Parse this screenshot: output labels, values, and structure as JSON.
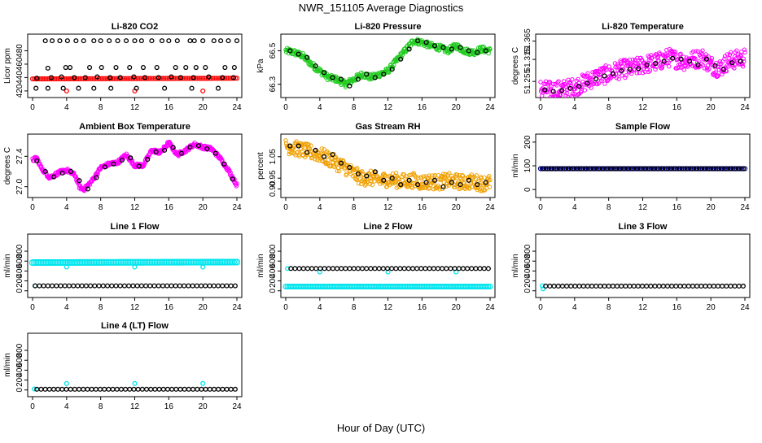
{
  "page": {
    "title": "NWR_151105  Average Diagnostics",
    "xlabel": "Hour of Day (UTC)"
  },
  "colors": {
    "red": "#ff0000",
    "green": "#22cc22",
    "magenta": "#ff00ff",
    "orange": "#f0a000",
    "navy": "#000088",
    "cyan": "#00e5ee",
    "black": "#000000"
  },
  "chart_data": [
    {
      "type": "scatter",
      "title": "Li-820 CO2",
      "ylabel": "Licor ppm",
      "xlim": [
        0,
        24
      ],
      "ylim": [
        415,
        500
      ],
      "xticks": [
        "0",
        "4",
        "8",
        "12",
        "16",
        "20",
        "24"
      ],
      "yticks": [
        "420",
        "440",
        "460",
        "480"
      ],
      "series": [
        {
          "color": "red",
          "kind": "band",
          "x_start": 0,
          "x_end": 24,
          "y_start": 438,
          "y_end": 439,
          "thickness": 4
        },
        {
          "color": "red",
          "kind": "points",
          "x": [
            4,
            12,
            20
          ],
          "y": [
            420,
            420,
            420
          ]
        },
        {
          "color": "black",
          "kind": "points",
          "x": [
            1.5,
            2.3,
            3.2,
            4.1,
            5.1,
            6,
            7.2,
            8,
            9,
            10,
            11,
            12,
            12.8,
            14,
            15.2,
            16,
            17,
            18.5,
            19,
            20,
            21.3,
            22.1,
            23,
            24,
            1.8,
            3.9,
            4.4,
            6.7,
            8.1,
            9.8,
            11.4,
            13,
            14.6,
            16.8,
            18,
            19.2,
            20.3,
            22.6,
            23.7,
            0.5,
            2.2,
            3.4,
            4.9,
            6.2,
            7.6,
            9.1,
            10.3,
            11.9,
            13.2,
            14.8,
            16.3,
            17.4,
            18.9,
            20.7,
            22.3,
            23.6,
            0.4,
            1.8,
            3.6,
            5.4,
            7.2,
            9.2,
            12.2,
            15.5,
            18.7,
            21.8
          ],
          "y": [
            495,
            495,
            495,
            495,
            495,
            495,
            495,
            495,
            495,
            495,
            495,
            495,
            495,
            495,
            495,
            495,
            495,
            495,
            495,
            495,
            495,
            495,
            495,
            495,
            454,
            455,
            455,
            455,
            455,
            455,
            455,
            455,
            455,
            455,
            455,
            455,
            455,
            455,
            455,
            439,
            440,
            441,
            440,
            440,
            441,
            440,
            440,
            441,
            440,
            440,
            441,
            440,
            440,
            441,
            440,
            440,
            424,
            424,
            424,
            424,
            424,
            424,
            424,
            424,
            424,
            424
          ]
        }
      ]
    },
    {
      "type": "scatter",
      "title": "Li-820 Pressure",
      "ylabel": "kPa",
      "xlim": [
        0,
        24
      ],
      "ylim": [
        66.24,
        66.58
      ],
      "xticks": [
        "0",
        "4",
        "8",
        "12",
        "16",
        "20",
        "24"
      ],
      "yticks": [
        "66.3",
        "66.5"
      ],
      "series": [
        {
          "color": "green",
          "kind": "band_curve",
          "x": [
            0,
            1,
            2,
            3,
            4,
            5,
            6,
            7,
            8,
            9,
            10,
            11,
            12,
            13,
            14,
            15,
            16,
            17,
            18,
            19,
            20,
            21,
            22,
            23,
            24
          ],
          "y": [
            66.5,
            66.49,
            66.47,
            66.42,
            66.38,
            66.34,
            66.33,
            66.3,
            66.33,
            66.36,
            66.34,
            66.36,
            66.38,
            66.44,
            66.5,
            66.56,
            66.55,
            66.53,
            66.52,
            66.5,
            66.53,
            66.5,
            66.49,
            66.51,
            66.5
          ],
          "spread": 0.018
        },
        {
          "color": "black",
          "kind": "points",
          "x": [
            0.5,
            1.5,
            2.5,
            3.5,
            4.5,
            5.5,
            6.5,
            7.5,
            8.5,
            9.5,
            10.5,
            11.5,
            12.5,
            13.5,
            14.5,
            15.5,
            16.5,
            17.5,
            18.5,
            19.5,
            20.5,
            21.5,
            22.5,
            23.5
          ],
          "y": [
            66.5,
            66.48,
            66.46,
            66.41,
            66.37,
            66.34,
            66.33,
            66.29,
            66.33,
            66.36,
            66.34,
            66.36,
            66.39,
            66.45,
            66.51,
            66.56,
            66.55,
            66.53,
            66.52,
            66.51,
            66.52,
            66.5,
            66.49,
            66.5
          ]
        }
      ]
    },
    {
      "type": "scatter",
      "title": "Li-820 Temperature",
      "ylabel": "degrees C",
      "xlim": [
        0,
        24
      ],
      "ylim": [
        51.22,
        51.375
      ],
      "xticks": [
        "0",
        "4",
        "8",
        "12",
        "16",
        "20",
        "24"
      ],
      "yticks": [
        "51.255",
        "51.315",
        "51.365"
      ],
      "series": [
        {
          "color": "magenta",
          "kind": "band_curve",
          "x": [
            0,
            1,
            2,
            3,
            4,
            5,
            6,
            7,
            8,
            9,
            10,
            11,
            12,
            13,
            14,
            15,
            16,
            17,
            18,
            19,
            20,
            21,
            22,
            23,
            24
          ],
          "y": [
            51.235,
            51.23,
            51.232,
            51.235,
            51.24,
            51.25,
            51.262,
            51.27,
            51.275,
            51.285,
            51.29,
            51.292,
            51.3,
            51.305,
            51.31,
            51.32,
            51.315,
            51.31,
            51.315,
            51.32,
            51.3,
            51.29,
            51.31,
            51.315,
            51.32
          ],
          "spread": 0.025
        },
        {
          "color": "black",
          "kind": "points",
          "x": [
            0.5,
            1.5,
            2.5,
            3.5,
            4.5,
            5.5,
            6.5,
            7.5,
            8.5,
            9.5,
            10.5,
            11.5,
            12.5,
            13.5,
            14.5,
            15.5,
            16.5,
            17.5,
            18.5,
            19.5,
            20.5,
            21.5,
            22.5,
            23.5
          ],
          "y": [
            51.232,
            51.228,
            51.23,
            51.236,
            51.242,
            51.25,
            51.262,
            51.27,
            51.276,
            51.284,
            51.288,
            51.29,
            51.3,
            51.304,
            51.31,
            51.318,
            51.316,
            51.31,
            51.3,
            51.316,
            51.298,
            51.288,
            51.306,
            51.31
          ]
        }
      ]
    },
    {
      "type": "scatter",
      "title": "Ambient Box Temperature",
      "ylabel": "degrees C",
      "xlim": [
        0,
        24
      ],
      "ylim": [
        26.9,
        27.65
      ],
      "xticks": [
        "0",
        "4",
        "8",
        "12",
        "16",
        "20",
        "24"
      ],
      "yticks": [
        "27.0",
        "27.4"
      ],
      "series": [
        {
          "color": "magenta",
          "kind": "band_curve",
          "x": [
            0,
            0.5,
            1,
            2,
            3,
            4,
            5,
            5.5,
            6,
            7,
            8,
            9,
            10,
            11,
            12,
            13,
            14,
            15,
            16,
            17,
            18,
            19,
            20,
            21,
            22,
            23,
            24
          ],
          "y": [
            27.35,
            27.38,
            27.25,
            27.12,
            27.18,
            27.22,
            27.15,
            27.0,
            26.96,
            27.08,
            27.25,
            27.3,
            27.32,
            27.42,
            27.28,
            27.28,
            27.48,
            27.45,
            27.58,
            27.42,
            27.48,
            27.56,
            27.52,
            27.5,
            27.38,
            27.22,
            27.02
          ],
          "spread": 0.025
        },
        {
          "color": "black",
          "kind": "points",
          "x": [
            0.5,
            1.5,
            2.5,
            3.5,
            4.5,
            5.5,
            6.5,
            7.5,
            8.5,
            9.5,
            10.5,
            11.5,
            12.5,
            13.5,
            14.5,
            15.5,
            16.5,
            17.5,
            18.5,
            19.5,
            20.5,
            21.5,
            22.5,
            23.5
          ],
          "y": [
            27.34,
            27.2,
            27.13,
            27.18,
            27.2,
            27.08,
            26.97,
            27.12,
            27.26,
            27.3,
            27.35,
            27.38,
            27.27,
            27.36,
            27.46,
            27.48,
            27.52,
            27.44,
            27.52,
            27.54,
            27.5,
            27.44,
            27.3,
            27.1
          ]
        }
      ]
    },
    {
      "type": "scatter",
      "title": "Gas Stream RH",
      "ylabel": "percent",
      "xlim": [
        0,
        24
      ],
      "ylim": [
        0.875,
        1.14
      ],
      "xticks": [
        "0",
        "4",
        "8",
        "12",
        "16",
        "20",
        "24"
      ],
      "yticks": [
        "0.90",
        "0.95",
        "1.05"
      ],
      "series": [
        {
          "color": "orange",
          "kind": "band_curve",
          "x": [
            0,
            1,
            2,
            3,
            4,
            5,
            6,
            7,
            8,
            9,
            10,
            11,
            12,
            13,
            14,
            15,
            16,
            17,
            18,
            19,
            20,
            21,
            22,
            23,
            24
          ],
          "y": [
            1.1,
            1.09,
            1.08,
            1.07,
            1.06,
            1.04,
            1.02,
            1.0,
            0.97,
            0.95,
            0.95,
            0.94,
            0.945,
            0.94,
            0.935,
            0.94,
            0.93,
            0.935,
            0.93,
            0.94,
            0.935,
            0.93,
            0.935,
            0.925,
            0.93
          ],
          "spread": 0.035
        },
        {
          "color": "black",
          "kind": "points",
          "x": [
            0.5,
            1.5,
            2.5,
            3.5,
            4.5,
            5.5,
            6.5,
            7.5,
            8.5,
            9.5,
            10.5,
            11.5,
            12.5,
            13.5,
            14.5,
            15.5,
            16.5,
            17.5,
            18.5,
            19.5,
            20.5,
            21.5,
            22.5,
            23.5
          ],
          "y": [
            1.1,
            1.1,
            1.07,
            1.08,
            1.05,
            1.06,
            1.02,
            1.0,
            0.97,
            0.96,
            0.98,
            0.94,
            0.95,
            0.92,
            0.94,
            0.92,
            0.93,
            0.94,
            0.91,
            0.93,
            0.92,
            0.94,
            0.92,
            0.93
          ]
        }
      ]
    },
    {
      "type": "scatter",
      "title": "Sample Flow",
      "ylabel": "ml/min",
      "xlim": [
        0,
        24
      ],
      "ylim": [
        -20,
        220
      ],
      "xticks": [
        "0",
        "4",
        "8",
        "12",
        "16",
        "20",
        "24"
      ],
      "yticks": [
        "0",
        "100",
        "200"
      ],
      "series": [
        {
          "color": "navy",
          "kind": "band",
          "x_start": 0,
          "x_end": 24,
          "y_start": 88,
          "y_end": 88,
          "thickness": 4
        },
        {
          "color": "black",
          "kind": "line_points",
          "x_start": 0.3,
          "x_end": 23.8,
          "count": 48,
          "y": 88
        }
      ]
    },
    {
      "type": "scatter",
      "title": "Line 1 Flow",
      "ylabel": "ml/min",
      "xlim": [
        0,
        24
      ],
      "ylim": [
        -70,
        1080
      ],
      "xticks": [
        "0",
        "4",
        "8",
        "12",
        "16",
        "20",
        "24"
      ],
      "yticks": [
        "0",
        "200",
        "400",
        "600",
        "800"
      ],
      "series": [
        {
          "color": "cyan",
          "kind": "band",
          "x_start": 0,
          "x_end": 24,
          "y_start": 570,
          "y_end": 580,
          "thickness": 6
        },
        {
          "color": "cyan",
          "kind": "points",
          "x": [
            4,
            12,
            20
          ],
          "y": [
            480,
            480,
            480
          ]
        },
        {
          "color": "cyan",
          "kind": "points",
          "x": [
            0.3
          ],
          "y": [
            100
          ]
        },
        {
          "color": "black",
          "kind": "line_points",
          "x_start": 0.3,
          "x_end": 23.8,
          "count": 48,
          "y": 100
        }
      ]
    },
    {
      "type": "scatter",
      "title": "Line 2 Flow",
      "ylabel": "ml/min",
      "xlim": [
        0,
        24
      ],
      "ylim": [
        -70,
        1080
      ],
      "xticks": [
        "0",
        "4",
        "8",
        "12",
        "16",
        "20",
        "24"
      ],
      "yticks": [
        "0",
        "200",
        "400",
        "600",
        "800"
      ],
      "series": [
        {
          "color": "cyan",
          "kind": "band",
          "x_start": 0,
          "x_end": 24,
          "y_start": 85,
          "y_end": 85,
          "thickness": 5
        },
        {
          "color": "cyan",
          "kind": "points",
          "x": [
            0.2,
            4,
            12,
            20
          ],
          "y": [
            450,
            380,
            380,
            380
          ]
        },
        {
          "color": "black",
          "kind": "line_points",
          "x_start": 0.6,
          "x_end": 23.8,
          "count": 48,
          "y": 450
        }
      ]
    },
    {
      "type": "scatter",
      "title": "Line 3 Flow",
      "ylabel": "ml/min",
      "xlim": [
        0,
        24
      ],
      "ylim": [
        -70,
        1080
      ],
      "xticks": [
        "0",
        "4",
        "8",
        "12",
        "16",
        "20",
        "24"
      ],
      "yticks": [
        "0",
        "200",
        "400",
        "600",
        "800"
      ],
      "series": [
        {
          "color": "cyan",
          "kind": "points",
          "x": [
            0.2,
            0.3
          ],
          "y": [
            100,
            40
          ]
        },
        {
          "color": "black",
          "kind": "line_points",
          "x_start": 0.6,
          "x_end": 23.8,
          "count": 48,
          "y": 95
        }
      ]
    },
    {
      "type": "scatter",
      "title": "Line 4 (LT) Flow",
      "ylabel": "ml/min",
      "xlim": [
        0,
        24
      ],
      "ylim": [
        -70,
        1080
      ],
      "xticks": [
        "0",
        "4",
        "8",
        "12",
        "16",
        "20",
        "24"
      ],
      "yticks": [
        "0",
        "200",
        "400",
        "600",
        "800"
      ],
      "series": [
        {
          "color": "cyan",
          "kind": "points",
          "x": [
            0.2,
            4,
            12,
            20
          ],
          "y": [
            20,
            130,
            130,
            130
          ]
        },
        {
          "color": "black",
          "kind": "line_points",
          "x_start": 0.5,
          "x_end": 23.8,
          "count": 48,
          "y": 15
        }
      ]
    }
  ]
}
